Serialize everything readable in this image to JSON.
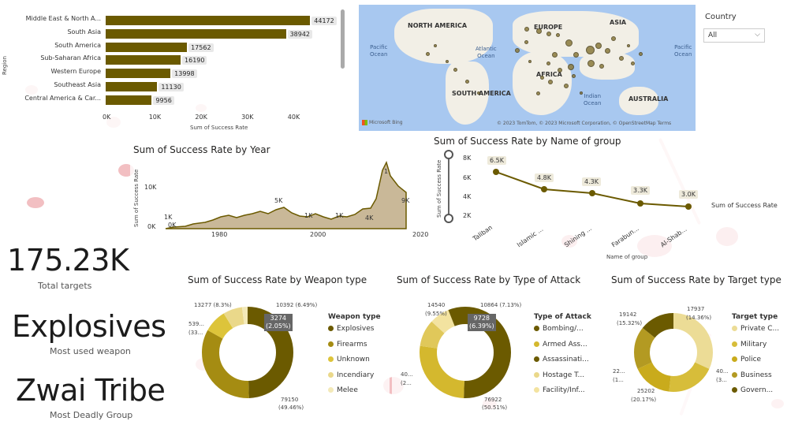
{
  "region_chart": {
    "yaxis_label": "Region",
    "xaxis_label": "Sum of Success Rate",
    "ticks": [
      "0K",
      "10K",
      "20K",
      "30K",
      "40K"
    ],
    "bars": [
      {
        "label": "Middle East & North A...",
        "value": "44172",
        "num": 44172
      },
      {
        "label": "South Asia",
        "value": "38942",
        "num": 38942
      },
      {
        "label": "South America",
        "value": "17562",
        "num": 17562
      },
      {
        "label": "Sub-Saharan Africa",
        "value": "16190",
        "num": 16190
      },
      {
        "label": "Western Europe",
        "value": "13998",
        "num": 13998
      },
      {
        "label": "Southeast Asia",
        "value": "11130",
        "num": 11130
      },
      {
        "label": "Central America & Car...",
        "value": "9956",
        "num": 9956
      }
    ]
  },
  "map": {
    "labels": [
      "NORTH AMERICA",
      "EUROPE",
      "ASIA",
      "AFRICA",
      "SOUTH AMERICA",
      "AUSTRALIA"
    ],
    "oceans": [
      "Pacific\nOcean",
      "Atlantic\nOcean",
      "Indian\nOcean",
      "Pacific\nOcean"
    ],
    "attribution": "© 2023 TomTom, © 2023 Microsoft Corporation, © OpenStreetMap  Terms",
    "bing": "Microsoft Bing"
  },
  "filter": {
    "label": "Country",
    "value": "All"
  },
  "year_chart": {
    "title": "Sum of Success Rate by Year",
    "ylabel": "Sum of Success Rate",
    "yticks": [
      "0K",
      "10K"
    ],
    "xticks": [
      "1980",
      "2000",
      "2020"
    ],
    "labels": [
      "1K",
      "0K",
      "5K",
      "1K",
      "1K",
      "4K",
      "1",
      "9K"
    ]
  },
  "group_chart": {
    "title": "Sum of Success Rate by Name of group",
    "ylabel": "Sum of Success Rate",
    "xlabel": "Name of group",
    "yticks": [
      "8K",
      "6K",
      "4K",
      "2K"
    ],
    "categories": [
      "Taliban",
      "Islamic ...",
      "Shining ...",
      "Farabun...",
      "Al-Shab..."
    ],
    "tags": [
      "6.5K",
      "4.8K",
      "4.3K",
      "3.3K",
      "3.0K"
    ],
    "legend": "Sum of Success Rate"
  },
  "kpis": [
    {
      "value": "175.23K",
      "label": "Total targets"
    },
    {
      "value": "Explosives",
      "label": "Most used weapon"
    },
    {
      "value": "Zwai Tribe",
      "label": "Most Deadly Group"
    }
  ],
  "weapon_chart": {
    "title": "Sum of Success Rate by Weapon type",
    "legend_title": "Weapon type",
    "legend": [
      "Explosives",
      "Firearms",
      "Unknown",
      "Incendiary",
      "Melee"
    ],
    "colors": [
      "#6b5a00",
      "#a58c12",
      "#ddc43a",
      "#ead88a",
      "#f3e9b8"
    ],
    "annotations": [
      "13277 (8.3%)",
      "10392 (6.49%)",
      "539...",
      "(33...",
      "3274",
      "(2.05%)",
      "79150",
      "(49.46%)"
    ]
  },
  "attack_chart": {
    "title": "Sum of Success Rate by Type of Attack",
    "legend_title": "Type of Attack",
    "legend": [
      "Bombing/...",
      "Armed Ass...",
      "Assassinati...",
      "Hostage T...",
      "Facility/Inf..."
    ],
    "colors": [
      "#6b5a00",
      "#d4b82e",
      "#6b5a00",
      "#ead88a",
      "#f3e3a0"
    ],
    "annotations": [
      "14540",
      "(9.55%)",
      "10864 (7.13%)",
      "9728",
      "(6.39%)",
      "40...",
      "(2...",
      "76922",
      "(50.51%)"
    ]
  },
  "target_chart": {
    "title": "Sum of Success Rate by Target type",
    "legend_title": "Target type",
    "legend": [
      "Private C...",
      "Military",
      "Police",
      "Business",
      "Govern..."
    ],
    "colors": [
      "#ecdc96",
      "#d7bd3a",
      "#c9ab1c",
      "#b39a22",
      "#6b5a00"
    ],
    "annotations": [
      "19142",
      "(15.32%)",
      "17937",
      "(14.36%)",
      "22...",
      "(1...",
      "40...",
      "(3...",
      "25202",
      "(20.17%)"
    ]
  }
}
